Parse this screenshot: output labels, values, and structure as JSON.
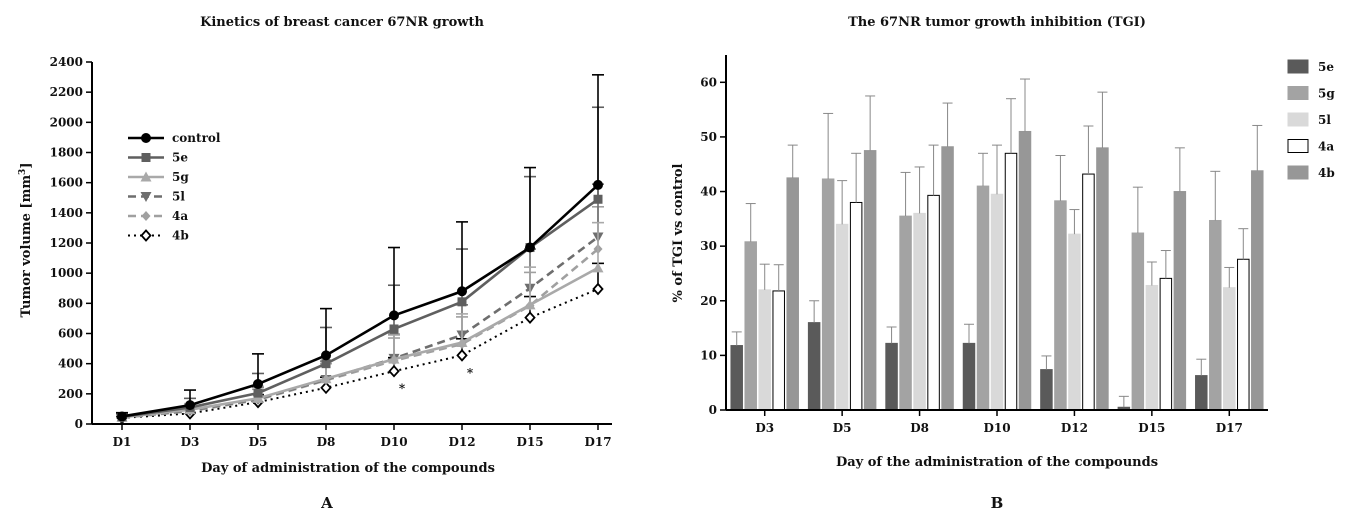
{
  "chart_data": [
    {
      "type": "line",
      "panel_label": "A",
      "title": "Kinetics of breast cancer 67NR growth",
      "xlabel": "Day of administration of the compounds",
      "ylabel_main": "Tumor volume [mm",
      "ylabel_sup": "3",
      "ylabel_close": "]",
      "categories": [
        "D1",
        "D3",
        "D5",
        "D8",
        "D10",
        "D12",
        "D15",
        "D17"
      ],
      "ylim": [
        0,
        2400
      ],
      "yticks": [
        "0",
        "200",
        "400",
        "600",
        "800",
        "1000",
        "1200",
        "1400",
        "1600",
        "1800",
        "2000",
        "2200",
        "2400"
      ],
      "legend_position": "top-left",
      "series": [
        {
          "name": "control",
          "values": [
            50,
            125,
            265,
            455,
            720,
            880,
            1170,
            1585
          ],
          "errors": [
            25,
            100,
            200,
            310,
            450,
            460,
            530,
            730
          ],
          "color": "#000000",
          "dash": "solid",
          "marker": "circle"
        },
        {
          "name": "5e",
          "values": [
            48,
            110,
            205,
            400,
            630,
            810,
            1170,
            1490
          ],
          "errors": [
            20,
            60,
            130,
            240,
            290,
            350,
            470,
            610
          ],
          "color": "#5f5f5f",
          "dash": "solid",
          "marker": "square"
        },
        {
          "name": "5g",
          "values": [
            45,
            95,
            170,
            300,
            430,
            540,
            790,
            1035
          ],
          "errors": [
            15,
            40,
            80,
            120,
            160,
            190,
            250,
            300
          ],
          "color": "#a9a9a9",
          "dash": "solid",
          "marker": "triangle"
        },
        {
          "name": "5l",
          "values": [
            45,
            90,
            165,
            295,
            435,
            590,
            900,
            1240
          ],
          "errors": [
            15,
            40,
            80,
            120,
            160,
            200,
            260,
            350
          ],
          "color": "#6e6e6e",
          "dash": "dashed",
          "marker": "triangle-down"
        },
        {
          "name": "4a",
          "values": [
            42,
            85,
            160,
            290,
            420,
            530,
            785,
            1160
          ],
          "errors": [
            15,
            35,
            70,
            110,
            150,
            180,
            220,
            280
          ],
          "color": "#a0a0a0",
          "dash": "dashed",
          "marker": "diamond"
        },
        {
          "name": "4b",
          "values": [
            40,
            70,
            145,
            240,
            350,
            455,
            705,
            895
          ],
          "errors": [
            10,
            30,
            50,
            70,
            90,
            110,
            140,
            170
          ],
          "color": "#000000",
          "dash": "dotted",
          "marker": "diamond-open"
        }
      ],
      "annotations": [
        {
          "text": "*",
          "x": "D10",
          "y": 250
        },
        {
          "text": "*",
          "x": "D12",
          "y": 350
        }
      ]
    },
    {
      "type": "bar",
      "panel_label": "B",
      "title": "The 67NR tumor growth inhibition (TGI)",
      "xlabel": "Day of the administration of the compounds",
      "ylabel": "% of TGI vs control",
      "categories": [
        "D3",
        "D5",
        "D8",
        "D10",
        "D12",
        "D15",
        "D17"
      ],
      "ylim": [
        0,
        65
      ],
      "yticks": [
        "0",
        "10",
        "20",
        "30",
        "40",
        "50",
        "60"
      ],
      "legend_position": "right",
      "series": [
        {
          "name": "5e",
          "values": [
            11.8,
            16,
            12.2,
            12.2,
            7.4,
            0.5,
            6.3
          ],
          "errors": [
            2.5,
            4,
            3,
            3.5,
            2.5,
            2,
            3
          ],
          "color": "#5a5a5a",
          "border": "#5a5a5a"
        },
        {
          "name": "5g",
          "values": [
            30.8,
            42.3,
            35.5,
            41,
            38.3,
            32.4,
            34.7
          ],
          "errors": [
            7,
            12,
            8,
            6,
            8.3,
            8.4,
            9
          ],
          "color": "#a3a3a3",
          "border": "#a3a3a3"
        },
        {
          "name": "5l",
          "values": [
            22,
            34,
            36,
            39.5,
            32.2,
            22.8,
            22.4
          ],
          "errors": [
            4.7,
            8,
            8.5,
            9,
            4.5,
            4.3,
            3.7
          ],
          "color": "#d9d9d9",
          "border": "#d9d9d9"
        },
        {
          "name": "4a",
          "values": [
            21.8,
            38,
            39.3,
            47,
            43.2,
            24.1,
            27.6
          ],
          "errors": [
            4.8,
            9,
            9.2,
            10,
            8.8,
            5.1,
            5.6
          ],
          "color": "#ffffff",
          "border": "#000000"
        },
        {
          "name": "4b",
          "values": [
            42.5,
            47.5,
            48.2,
            51,
            48,
            40,
            43.8
          ],
          "errors": [
            6,
            10,
            8,
            9.6,
            10.2,
            8,
            8.3
          ],
          "color": "#979797",
          "border": "#979797"
        }
      ]
    }
  ]
}
